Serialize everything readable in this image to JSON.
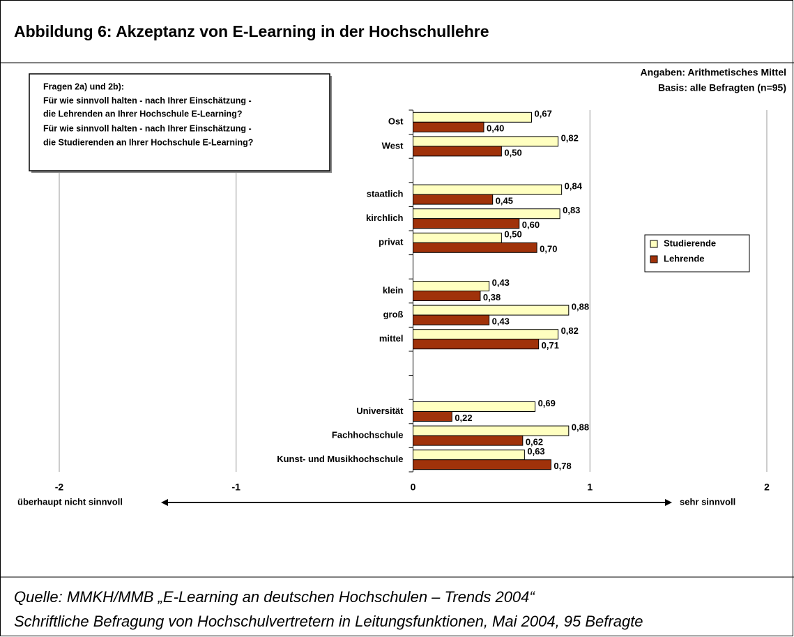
{
  "chart_data": {
    "type": "barh",
    "title": "Abbildung 6: Akzeptanz von E-Learning in der Hochschullehre",
    "question": [
      "Fragen 2a) und 2b):",
      "Für wie sinnvoll halten - nach Ihrer Einschätzung -",
      "die Lehrenden an Ihrer Hochschule E-Learning?",
      "Für wie sinnvoll halten - nach Ihrer Einschätzung -",
      "die Studierenden an Ihrer Hochschule E-Learning?"
    ],
    "notes": [
      "Angaben: Arithmetisches Mittel",
      "Basis: alle Befragten (n=95)"
    ],
    "axis_left_label": "überhaupt nicht sinnvoll",
    "axis_right_label": "sehr sinnvoll",
    "source": [
      "Quelle: MMKH/MMB „E-Learning an deutschen Hochschulen – Trends 2004“",
      "Schriftliche Befragung von Hochschulvertretern in Leitungsfunktionen, Mai 2004, 95 Befragte"
    ],
    "categories": [
      "Ost",
      "West",
      null,
      "staatlich",
      "kirchlich",
      "privat",
      null,
      "klein",
      "groß",
      "mittel",
      null,
      null,
      "Universität",
      "Fachhochschule",
      "Kunst- und Musikhochschule"
    ],
    "series": [
      {
        "name": "Studierende",
        "color": "#ffffc0",
        "values": [
          0.67,
          0.82,
          null,
          0.84,
          0.83,
          0.5,
          null,
          0.43,
          0.88,
          0.82,
          null,
          null,
          0.69,
          0.88,
          0.63
        ],
        "value_labels": [
          "0,67",
          "0,82",
          null,
          "0,84",
          "0,83",
          "0,50",
          null,
          "0,43",
          "0,88",
          "0,82",
          null,
          null,
          "0,69",
          "0,88",
          "0,63"
        ]
      },
      {
        "name": "Lehrende",
        "color": "#a0320a",
        "values": [
          0.4,
          0.5,
          null,
          0.45,
          0.6,
          0.7,
          null,
          0.38,
          0.43,
          0.71,
          null,
          null,
          0.22,
          0.62,
          0.78
        ],
        "value_labels": [
          "0,40",
          "0,50",
          null,
          "0,45",
          "0,60",
          "0,70",
          null,
          "0,38",
          "0,43",
          "0,71",
          null,
          null,
          "0,22",
          "0,62",
          "0,78"
        ]
      }
    ],
    "xlim": [
      -2,
      2
    ],
    "xticks": [
      -2,
      -1,
      0,
      1,
      2
    ],
    "grid": true,
    "legend": "right"
  }
}
